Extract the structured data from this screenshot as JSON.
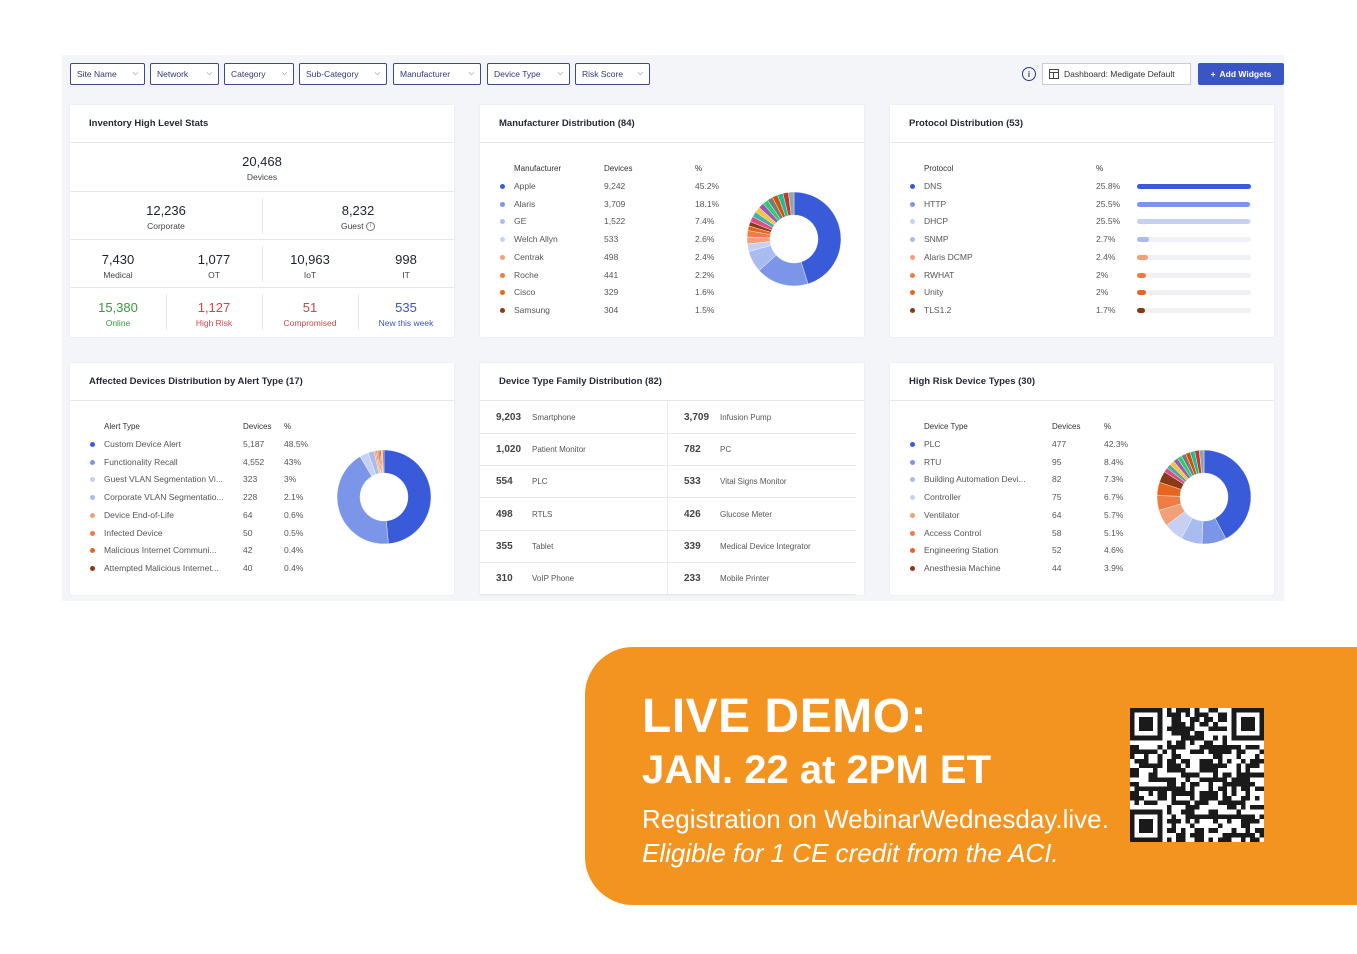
{
  "filters": [
    "Site Name",
    "Network",
    "Category",
    "Sub-Category",
    "Manufacturer",
    "Device Type",
    "Risk Score"
  ],
  "toolbar": {
    "dashboard_label": "Dashboard: Medigate Default",
    "add_widgets": "Add Widgets",
    "info_icon": "i",
    "add_icon": "+"
  },
  "inventory": {
    "title": "Inventory High Level Stats",
    "total": {
      "value": "20,468",
      "label": "Devices"
    },
    "row2": [
      {
        "value": "12,236",
        "label": "Corporate"
      },
      {
        "value": "8,232",
        "label": "Guest"
      }
    ],
    "row3": [
      {
        "value": "7,430",
        "label": "Medical"
      },
      {
        "value": "1,077",
        "label": "OT"
      },
      {
        "value": "10,963",
        "label": "IoT"
      },
      {
        "value": "998",
        "label": "IT"
      }
    ],
    "row4": [
      {
        "value": "15,380",
        "label": "Online",
        "color": "#3a9a3a"
      },
      {
        "value": "1,127",
        "label": "High Risk",
        "color": "#d04545"
      },
      {
        "value": "51",
        "label": "Compromised",
        "color": "#d04545"
      },
      {
        "value": "535",
        "label": "New this week",
        "color": "#3a56c4"
      }
    ]
  },
  "manufacturer": {
    "title": "Manufacturer Distribution (84)",
    "headers": [
      "Manufacturer",
      "Devices",
      "%"
    ],
    "rows": [
      {
        "name": "Apple",
        "devices": "9,242",
        "pct": "45.2%",
        "color": "#3a5bd9"
      },
      {
        "name": "Alaris",
        "devices": "3,709",
        "pct": "18.1%",
        "color": "#7b96e8"
      },
      {
        "name": "GE",
        "devices": "1,522",
        "pct": "7.4%",
        "color": "#a9bcf0"
      },
      {
        "name": "Welch Allyn",
        "devices": "533",
        "pct": "2.6%",
        "color": "#c5d0f3"
      },
      {
        "name": "Centrak",
        "devices": "498",
        "pct": "2.4%",
        "color": "#f2a07a"
      },
      {
        "name": "Roche",
        "devices": "441",
        "pct": "2.2%",
        "color": "#f07c45"
      },
      {
        "name": "Cisco",
        "devices": "329",
        "pct": "1.6%",
        "color": "#e8651e"
      },
      {
        "name": "Samsung",
        "devices": "304",
        "pct": "1.5%",
        "color": "#8a3a12"
      }
    ]
  },
  "protocol": {
    "title": "Protocol Distribution (53)",
    "headers": [
      "Protocol",
      "%"
    ],
    "rows": [
      {
        "name": "DNS",
        "pct": "25.8%",
        "value": 25.8,
        "color": "#3a5bd9"
      },
      {
        "name": "HTTP",
        "pct": "25.5%",
        "value": 25.5,
        "color": "#7b96e8"
      },
      {
        "name": "DHCP",
        "pct": "25.5%",
        "value": 25.5,
        "color": "#c5d0f3"
      },
      {
        "name": "SNMP",
        "pct": "2.7%",
        "value": 2.7,
        "color": "#a9bcf0"
      },
      {
        "name": "Alaris DCMP",
        "pct": "2.4%",
        "value": 2.4,
        "color": "#f2a07a"
      },
      {
        "name": "RWHAT",
        "pct": "2%",
        "value": 2,
        "color": "#f07c45"
      },
      {
        "name": "Unity",
        "pct": "2%",
        "value": 2,
        "color": "#e8651e"
      },
      {
        "name": "TLS1.2",
        "pct": "1.7%",
        "value": 1.7,
        "color": "#8a3a12"
      }
    ]
  },
  "alerts": {
    "title": "Affected Devices Distribution by Alert Type (17)",
    "headers": [
      "Alert Type",
      "Devices",
      "%"
    ],
    "rows": [
      {
        "name": "Custom Device Alert",
        "devices": "5,187",
        "pct": "48.5%",
        "color": "#3a5bd9"
      },
      {
        "name": "Functionality Recall",
        "devices": "4,552",
        "pct": "43%",
        "color": "#7b96e8"
      },
      {
        "name": "Guest VLAN Segmentation Vi...",
        "devices": "323",
        "pct": "3%",
        "color": "#c5d0f3"
      },
      {
        "name": "Corporate VLAN Segmentatio...",
        "devices": "228",
        "pct": "2.1%",
        "color": "#a9bcf0"
      },
      {
        "name": "Device End-of-Life",
        "devices": "64",
        "pct": "0.6%",
        "color": "#f2a07a"
      },
      {
        "name": "Infected Device",
        "devices": "50",
        "pct": "0.5%",
        "color": "#f07c45"
      },
      {
        "name": "Malicious Internet Communi...",
        "devices": "42",
        "pct": "0.4%",
        "color": "#e8651e"
      },
      {
        "name": "Attempted Malicious Internet...",
        "devices": "40",
        "pct": "0.4%",
        "color": "#8a3a12"
      }
    ]
  },
  "family": {
    "title": "Device Type Family Distribution (82)",
    "rows": [
      [
        {
          "value": "9,203",
          "label": "Smartphone"
        },
        {
          "value": "3,709",
          "label": "Infusion Pump"
        }
      ],
      [
        {
          "value": "1,020",
          "label": "Patient Monitor"
        },
        {
          "value": "782",
          "label": "PC"
        }
      ],
      [
        {
          "value": "554",
          "label": "PLC"
        },
        {
          "value": "533",
          "label": "Vital Signs Monitor"
        }
      ],
      [
        {
          "value": "498",
          "label": "RTLS"
        },
        {
          "value": "426",
          "label": "Glucose Meter"
        }
      ],
      [
        {
          "value": "355",
          "label": "Tablet"
        },
        {
          "value": "339",
          "label": "Medical Device Integrator"
        }
      ],
      [
        {
          "value": "310",
          "label": "VoIP Phone"
        },
        {
          "value": "233",
          "label": "Mobile Printer"
        }
      ]
    ]
  },
  "risk": {
    "title": "High Risk Device Types (30)",
    "headers": [
      "Device Type",
      "Devices",
      "%"
    ],
    "rows": [
      {
        "name": "PLC",
        "devices": "477",
        "pct": "42.3%",
        "color": "#3a5bd9"
      },
      {
        "name": "RTU",
        "devices": "95",
        "pct": "8.4%",
        "color": "#7b96e8"
      },
      {
        "name": "Building Automation Devi...",
        "devices": "82",
        "pct": "7.3%",
        "color": "#a9bcf0"
      },
      {
        "name": "Controller",
        "devices": "75",
        "pct": "6.7%",
        "color": "#c5d0f3"
      },
      {
        "name": "Ventilator",
        "devices": "64",
        "pct": "5.7%",
        "color": "#f2a07a"
      },
      {
        "name": "Access Control",
        "devices": "58",
        "pct": "5.1%",
        "color": "#f07c45"
      },
      {
        "name": "Engineering Station",
        "devices": "52",
        "pct": "4.6%",
        "color": "#e8651e"
      },
      {
        "name": "Anesthesia Machine",
        "devices": "44",
        "pct": "3.9%",
        "color": "#8a3a12"
      }
    ]
  },
  "banner": {
    "line1": "LIVE DEMO:",
    "line2": "JAN. 22 at 2PM ET",
    "line3": "Registration on WebinarWednesday.live.",
    "line4": "Eligible for 1 CE credit from the ACI."
  },
  "colors": {
    "accent": "#3a56c4",
    "banner": "#f39320"
  }
}
